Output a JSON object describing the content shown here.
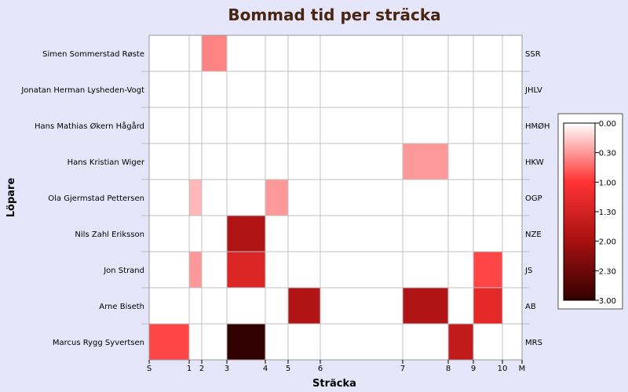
{
  "chart_data": {
    "type": "heatmap",
    "title": "Bommad tid per sträcka",
    "xlabel": "Sträcka",
    "ylabel": "Löpare",
    "x_ticks": [
      {
        "label": "S",
        "pos": 0
      },
      {
        "label": "1",
        "pos": 1
      },
      {
        "label": "2",
        "pos": 2
      },
      {
        "label": "3",
        "pos": 3
      },
      {
        "label": "4",
        "pos": 4
      },
      {
        "label": "5",
        "pos": 5
      },
      {
        "label": "6",
        "pos": 6
      },
      {
        "label": "7",
        "pos": 7
      },
      {
        "label": "8",
        "pos": 8
      },
      {
        "label": "9",
        "pos": 9
      },
      {
        "label": "10",
        "pos": 10
      },
      {
        "label": "M",
        "pos": 11
      }
    ],
    "runners": [
      {
        "name": "Simen Sommerstad Røste",
        "abbr": "SSR"
      },
      {
        "name": "Jonatan Herman Lysheden-Vogt",
        "abbr": "JHLV"
      },
      {
        "name": "Hans Mathias Økern Hågård",
        "abbr": "HMØH"
      },
      {
        "name": "Hans Kristian Wiger",
        "abbr": "HKW"
      },
      {
        "name": "Ola Gjermstad Pettersen",
        "abbr": "OGP"
      },
      {
        "name": "Nils Zahl Eriksson",
        "abbr": "NZE"
      },
      {
        "name": "Jon Strand",
        "abbr": "JS"
      },
      {
        "name": "Arne Biseth",
        "abbr": "AB"
      },
      {
        "name": "Marcus Rygg Syvertsen",
        "abbr": "MRS"
      }
    ],
    "cells": [
      {
        "runner": "SSR",
        "leg": "2",
        "value": 0.6
      },
      {
        "runner": "HKW",
        "leg": "7",
        "value": 0.5
      },
      {
        "runner": "OGP",
        "leg": "1",
        "value": 0.35
      },
      {
        "runner": "OGP",
        "leg": "4",
        "value": 0.5
      },
      {
        "runner": "NZE",
        "leg": "3",
        "value": 1.9
      },
      {
        "runner": "JS",
        "leg": "1",
        "value": 0.5
      },
      {
        "runner": "JS",
        "leg": "3",
        "value": 1.4
      },
      {
        "runner": "JS",
        "leg": "9",
        "value": 0.9
      },
      {
        "runner": "AB",
        "leg": "5",
        "value": 1.9
      },
      {
        "runner": "AB",
        "leg": "7",
        "value": 1.9
      },
      {
        "runner": "AB",
        "leg": "9",
        "value": 1.3
      },
      {
        "runner": "MRS",
        "leg": "S",
        "value": 0.9
      },
      {
        "runner": "MRS",
        "leg": "3",
        "value": 3.0
      },
      {
        "runner": "MRS",
        "leg": "8",
        "value": 1.7
      }
    ],
    "colorbar": {
      "ticks": [
        "0.00",
        "0.30",
        "1.00",
        "1.30",
        "2.00",
        "2.30",
        "3.00"
      ],
      "range": [
        0,
        3
      ]
    },
    "grid": true,
    "legend": "right"
  }
}
